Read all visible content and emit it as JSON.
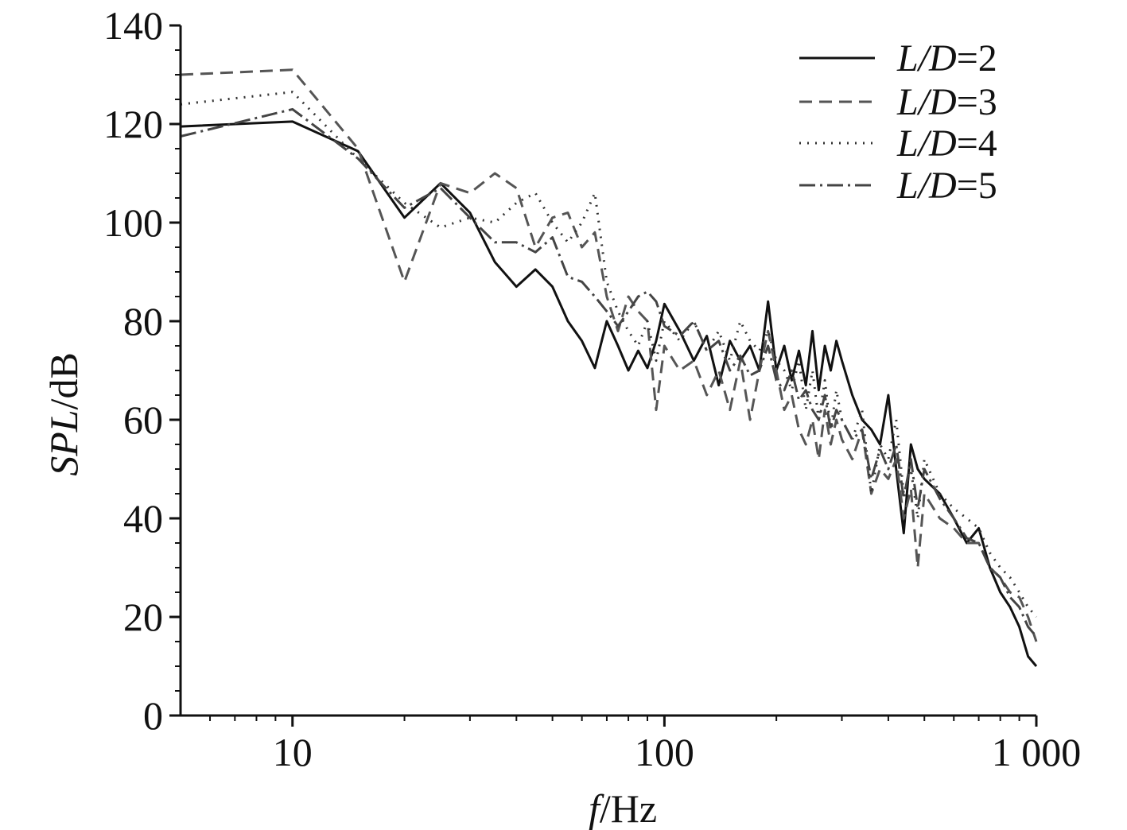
{
  "chart_data": {
    "type": "line",
    "title": "",
    "xlabel": {
      "var": "f",
      "unit": "/Hz"
    },
    "ylabel": {
      "var": "SPL",
      "unit": "/dB"
    },
    "xscale": "log",
    "xlim": [
      5,
      1000
    ],
    "ylim": [
      0,
      140
    ],
    "xticks": [
      10,
      100,
      1000
    ],
    "xtick_labels": [
      "10",
      "100",
      "1 000"
    ],
    "yticks": [
      0,
      20,
      40,
      60,
      80,
      100,
      120,
      140
    ],
    "ytick_labels": [
      "0",
      "20",
      "40",
      "60",
      "80",
      "100",
      "120",
      "140"
    ],
    "grid": false,
    "legend_position": "top-right",
    "series": [
      {
        "name": "L/D=2",
        "name_var": "L/D",
        "name_val": "=2",
        "color": "#111111",
        "dash": "",
        "x": [
          5,
          10,
          15,
          20,
          25,
          30,
          35,
          40,
          45,
          50,
          55,
          60,
          65,
          70,
          75,
          80,
          85,
          90,
          95,
          100,
          110,
          120,
          130,
          140,
          150,
          160,
          170,
          180,
          190,
          200,
          210,
          220,
          230,
          240,
          250,
          260,
          270,
          280,
          290,
          300,
          320,
          340,
          360,
          380,
          400,
          420,
          440,
          460,
          480,
          500,
          550,
          600,
          650,
          700,
          750,
          800,
          850,
          900,
          950,
          1000
        ],
        "y": [
          119.5,
          120.5,
          114.5,
          101,
          108,
          102,
          92,
          87,
          90.5,
          87,
          80,
          76,
          70.5,
          80,
          75,
          70,
          74,
          70.5,
          76,
          83.5,
          78,
          72,
          77,
          67,
          76,
          72,
          75,
          70,
          84,
          70,
          75,
          68,
          74,
          67,
          78,
          66,
          75,
          70,
          76,
          72,
          65,
          60,
          58,
          55,
          65,
          50,
          37,
          55,
          50,
          48,
          45,
          40,
          35,
          38,
          30,
          25,
          22,
          18,
          12,
          10
        ]
      },
      {
        "name": "L/D=3",
        "name_var": "L/D",
        "name_val": "=3",
        "color": "#555555",
        "dash": "16 9",
        "x": [
          5,
          10,
          15,
          20,
          25,
          30,
          35,
          40,
          45,
          50,
          55,
          60,
          65,
          70,
          75,
          80,
          85,
          90,
          95,
          100,
          110,
          120,
          130,
          140,
          150,
          160,
          170,
          180,
          190,
          200,
          210,
          220,
          230,
          240,
          250,
          260,
          270,
          280,
          290,
          300,
          320,
          340,
          360,
          380,
          400,
          420,
          440,
          460,
          480,
          500,
          550,
          600,
          650,
          700,
          750,
          800,
          850,
          900,
          950,
          1000
        ],
        "y": [
          130,
          131,
          115,
          88,
          108,
          106,
          110,
          107,
          95,
          101,
          102,
          95,
          98,
          85,
          78,
          85,
          82,
          80,
          62,
          75,
          70,
          72,
          65,
          70,
          62,
          72,
          60,
          70,
          78,
          70,
          62,
          65,
          58,
          55,
          60,
          52,
          62,
          55,
          60,
          56,
          52,
          58,
          45,
          50,
          48,
          52,
          40,
          46,
          30,
          45,
          40,
          38,
          35,
          35,
          30,
          28,
          25,
          24,
          20,
          15
        ]
      },
      {
        "name": "L/D=4",
        "name_var": "L/D",
        "name_val": "=4",
        "color": "#333333",
        "dash": "2 8",
        "x": [
          5,
          10,
          15,
          20,
          25,
          30,
          35,
          40,
          45,
          50,
          55,
          60,
          65,
          70,
          75,
          80,
          85,
          90,
          95,
          100,
          110,
          120,
          130,
          140,
          150,
          160,
          170,
          180,
          190,
          200,
          210,
          220,
          230,
          240,
          250,
          260,
          270,
          280,
          290,
          300,
          320,
          340,
          360,
          380,
          400,
          420,
          440,
          460,
          480,
          500,
          550,
          600,
          650,
          700,
          750,
          800,
          850,
          900,
          950,
          1000
        ],
        "y": [
          124,
          126.5,
          113,
          104,
          99,
          101,
          100,
          104,
          106,
          100,
          96,
          100,
          106,
          88,
          82,
          78,
          75,
          80,
          72,
          80,
          76,
          80,
          74,
          78,
          72,
          80,
          76,
          74,
          78,
          72,
          70,
          66,
          72,
          62,
          70,
          60,
          68,
          58,
          66,
          60,
          56,
          62,
          45,
          55,
          52,
          60,
          45,
          50,
          40,
          52,
          45,
          42,
          40,
          38,
          33,
          30,
          28,
          25,
          22,
          20
        ]
      },
      {
        "name": "L/D=5",
        "name_var": "L/D",
        "name_val": "=5",
        "color": "#444444",
        "dash": "20 6 3 6",
        "x": [
          5,
          10,
          15,
          20,
          25,
          30,
          35,
          40,
          45,
          50,
          55,
          60,
          65,
          70,
          75,
          80,
          85,
          90,
          95,
          100,
          110,
          120,
          130,
          140,
          150,
          160,
          170,
          180,
          190,
          200,
          210,
          220,
          230,
          240,
          250,
          260,
          270,
          280,
          290,
          300,
          320,
          340,
          360,
          380,
          400,
          420,
          440,
          460,
          480,
          500,
          550,
          600,
          650,
          700,
          750,
          800,
          850,
          900,
          950,
          1000
        ],
        "y": [
          117.5,
          123,
          113,
          103,
          107,
          101,
          96,
          96,
          94,
          97,
          89,
          88,
          85,
          82,
          79,
          82,
          85,
          86,
          84,
          79,
          77,
          80,
          74,
          76,
          70,
          73,
          69,
          70,
          75,
          68,
          66,
          70,
          64,
          66,
          62,
          60,
          65,
          58,
          62,
          60,
          56,
          58,
          48,
          54,
          50,
          55,
          44,
          52,
          42,
          50,
          44,
          40,
          36,
          35,
          30,
          28,
          24,
          22,
          18,
          16
        ]
      }
    ]
  }
}
